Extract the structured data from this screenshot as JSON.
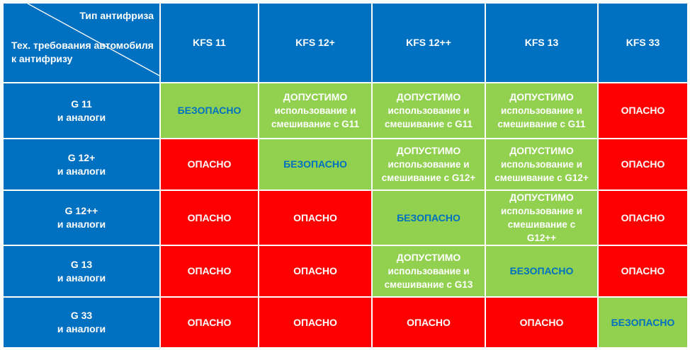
{
  "corner": {
    "column_caption": "Тип антифриза",
    "row_caption": "Тех. требования автомобиля к антифризу"
  },
  "columns": [
    "KFS 11",
    "KFS 12+",
    "KFS 12++",
    "KFS 13",
    "KFS 33"
  ],
  "rows": [
    {
      "name": "G 11",
      "suffix": "и аналоги",
      "cells": [
        {
          "status": "safe",
          "title": "БЕЗОПАСНО",
          "note": ""
        },
        {
          "status": "allowed",
          "title": "ДОПУСТИМО",
          "note": "использование и смешивание с G11"
        },
        {
          "status": "allowed",
          "title": "ДОПУСТИМО",
          "note": "использование и смешивание с G11"
        },
        {
          "status": "allowed",
          "title": "ДОПУСТИМО",
          "note": "использование и смешивание с G11"
        },
        {
          "status": "danger",
          "title": "ОПАСНО",
          "note": ""
        }
      ]
    },
    {
      "name": "G 12+",
      "suffix": "и аналоги",
      "cells": [
        {
          "status": "danger",
          "title": "ОПАСНО",
          "note": ""
        },
        {
          "status": "safe",
          "title": "БЕЗОПАСНО",
          "note": ""
        },
        {
          "status": "allowed",
          "title": "ДОПУСТИМО",
          "note": "использование и смешивание с G12+"
        },
        {
          "status": "allowed",
          "title": "ДОПУСТИМО",
          "note": "использование и смешивание с G12+"
        },
        {
          "status": "danger",
          "title": "ОПАСНО",
          "note": ""
        }
      ]
    },
    {
      "name": "G 12++",
      "suffix": "и аналоги",
      "cells": [
        {
          "status": "danger",
          "title": "ОПАСНО",
          "note": ""
        },
        {
          "status": "danger",
          "title": "ОПАСНО",
          "note": ""
        },
        {
          "status": "safe",
          "title": "БЕЗОПАСНО",
          "note": ""
        },
        {
          "status": "allowed",
          "title": "ДОПУСТИМО",
          "note": "использование и смешивание с G12++"
        },
        {
          "status": "danger",
          "title": "ОПАСНО",
          "note": ""
        }
      ]
    },
    {
      "name": "G 13",
      "suffix": "и аналоги",
      "cells": [
        {
          "status": "danger",
          "title": "ОПАСНО",
          "note": ""
        },
        {
          "status": "danger",
          "title": "ОПАСНО",
          "note": ""
        },
        {
          "status": "allowed",
          "title": "ДОПУСТИМО",
          "note": "использование и смешивание с G13"
        },
        {
          "status": "safe",
          "title": "БЕЗОПАСНО",
          "note": ""
        },
        {
          "status": "danger",
          "title": "ОПАСНО",
          "note": ""
        }
      ]
    },
    {
      "name": "G 33",
      "suffix": "и аналоги",
      "cells": [
        {
          "status": "danger",
          "title": "ОПАСНО",
          "note": ""
        },
        {
          "status": "danger",
          "title": "ОПАСНО",
          "note": ""
        },
        {
          "status": "danger",
          "title": "ОПАСНО",
          "note": ""
        },
        {
          "status": "danger",
          "title": "ОПАСНО",
          "note": ""
        },
        {
          "status": "safe",
          "title": "БЕЗОПАСНО",
          "note": ""
        }
      ]
    }
  ],
  "colors": {
    "header": "#0070C0",
    "safe": "#92D050",
    "allowed": "#92D050",
    "danger": "#FF0000",
    "safe_text": "#0070C0"
  }
}
